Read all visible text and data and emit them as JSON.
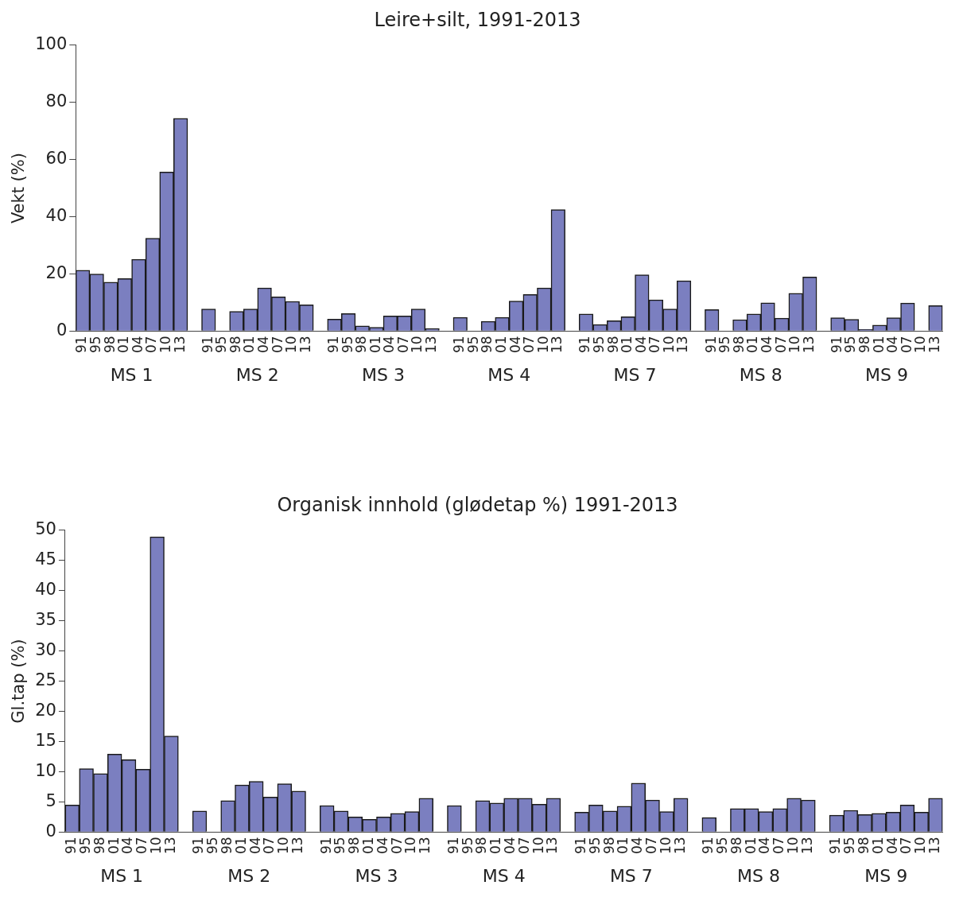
{
  "chart_data": [
    {
      "type": "bar",
      "title": "Leire+silt, 1991-2013",
      "ylabel": "Vekt (%)",
      "color": "#7b7fc0",
      "categories": [
        "91",
        "95",
        "98",
        "01",
        "04",
        "07",
        "10",
        "13",
        null,
        "91",
        "95",
        "98",
        "01",
        "04",
        "07",
        "10",
        "13",
        null,
        "91",
        "95",
        "98",
        "01",
        "04",
        "07",
        "10",
        "13",
        null,
        "91",
        "95",
        "98",
        "01",
        "04",
        "07",
        "10",
        "13",
        null,
        "91",
        "95",
        "98",
        "01",
        "04",
        "07",
        "10",
        "13",
        null,
        "91",
        "95",
        "98",
        "01",
        "04",
        "07",
        "10",
        "13",
        null,
        "91",
        "95",
        "98",
        "01",
        "04",
        "07",
        "10",
        "13"
      ],
      "values": [
        21.3,
        20,
        17.1,
        18.4,
        25.1,
        32.5,
        55.6,
        74.4,
        null,
        7.7,
        null,
        6.9,
        7.7,
        15.1,
        12,
        10.4,
        9.2,
        null,
        4.2,
        6.1,
        1.8,
        1.3,
        5.3,
        5.3,
        7.7,
        0.9,
        null,
        4.8,
        null,
        3.4,
        4.8,
        10.5,
        12.8,
        15.1,
        42.5,
        null,
        6,
        2.3,
        3.6,
        5,
        19.7,
        10.9,
        7.7,
        17.6,
        null,
        7.5,
        null,
        4,
        6,
        9.9,
        4.5,
        13.2,
        18.9,
        null,
        4.7,
        4.1,
        0.6,
        2.1,
        4.7,
        9.8,
        null,
        8.9
      ],
      "ylim": [
        0,
        100
      ],
      "yticks": [
        0,
        20,
        40,
        60,
        80,
        100
      ],
      "grid": false,
      "annotations": [
        "MS 1",
        "MS 2",
        "MS 3",
        "MS 4",
        "MS 7",
        "MS 8",
        "MS 9"
      ]
    },
    {
      "type": "bar",
      "title": "Organisk innhold (glødetap %) 1991-2013",
      "ylabel": "Gl.tap (%)",
      "color": "#7b7fc0",
      "categories": [
        "91",
        "95",
        "98",
        "01",
        "04",
        "07",
        "10",
        "13",
        null,
        "91",
        "95",
        "98",
        "01",
        "04",
        "07",
        "10",
        "13",
        null,
        "91",
        "95",
        "98",
        "01",
        "04",
        "07",
        "10",
        "13",
        null,
        "91",
        "95",
        "98",
        "01",
        "04",
        "07",
        "10",
        "13",
        null,
        "91",
        "95",
        "98",
        "01",
        "04",
        "07",
        "10",
        "13",
        null,
        "91",
        "95",
        "98",
        "01",
        "04",
        "07",
        "10",
        "13",
        null,
        "91",
        "95",
        "98",
        "01",
        "04",
        "07",
        "10",
        "13"
      ],
      "values": [
        4.5,
        10.5,
        9.7,
        12.9,
        12,
        10.4,
        48.9,
        15.9,
        null,
        3.5,
        null,
        5.2,
        7.8,
        8.4,
        5.8,
        8,
        6.8,
        null,
        4.4,
        3.5,
        2.5,
        2.1,
        2.5,
        3.1,
        3.4,
        5.6,
        null,
        4.4,
        null,
        5.2,
        4.8,
        5.6,
        5.6,
        4.6,
        5.6,
        null,
        3.3,
        4.5,
        3.5,
        4.3,
        8.1,
        5.3,
        3.4,
        5.6,
        null,
        2.4,
        null,
        3.9,
        3.9,
        3.4,
        3.9,
        5.6,
        5.3,
        null,
        2.8,
        3.6,
        2.9,
        3.1,
        3.3,
        4.5,
        3.3,
        5.6
      ],
      "ylim": [
        0,
        50
      ],
      "yticks": [
        0,
        5,
        10,
        15,
        20,
        25,
        30,
        35,
        40,
        45,
        50
      ],
      "grid": false,
      "annotations": [
        "MS 1",
        "MS 2",
        "MS 3",
        "MS 4",
        "MS 7",
        "MS 8",
        "MS 9"
      ]
    }
  ]
}
